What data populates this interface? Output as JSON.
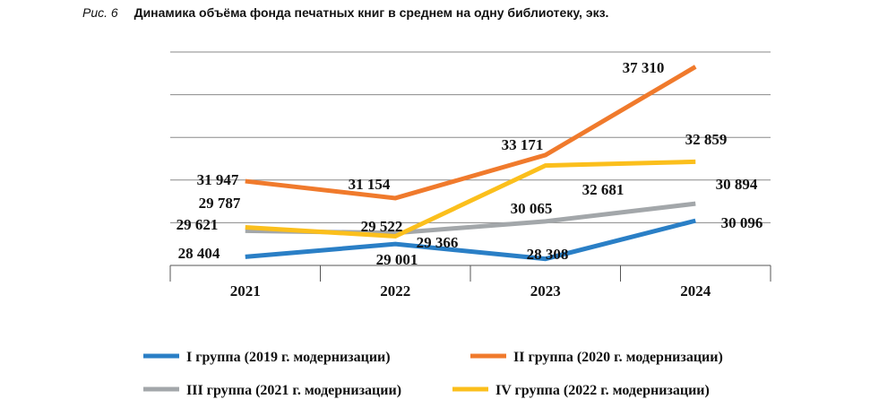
{
  "caption": {
    "figure_number": "Рис. 6",
    "title": "Динамика объёма фонда печатных книг в среднем на одну библиотеку, экз."
  },
  "chart_data": {
    "type": "line",
    "title": "Динамика объёма фонда печатных книг в среднем на одну библиотеку, экз.",
    "categories": [
      "2021",
      "2022",
      "2023",
      "2024"
    ],
    "ylim": [
      28000,
      38000
    ],
    "grid": true,
    "legend_position": "bottom",
    "series": [
      {
        "name": "I группа (2019 г. модернизации)",
        "color": "#2a7fc6",
        "values": [
          28404,
          29001,
          28308,
          30096
        ],
        "labels": [
          "28 404",
          "29 001",
          "28 308",
          "30 096"
        ]
      },
      {
        "name": "II группа (2020 г. модернизации)",
        "color": "#f07a2c",
        "values": [
          31947,
          31154,
          33171,
          37310
        ],
        "labels": [
          "31 947",
          "31 154",
          "33 171",
          "37 310"
        ]
      },
      {
        "name": "III группа (2021 г. модернизации)",
        "color": "#a3a7aa",
        "values": [
          29621,
          29522,
          30065,
          30894
        ],
        "labels": [
          "29 621",
          "29 522",
          "30 065",
          "30 894"
        ]
      },
      {
        "name": "IV группа (2022 г. модернизации)",
        "color": "#fbbf1c",
        "values": [
          29787,
          29366,
          32681,
          32859
        ],
        "labels": [
          "29 787",
          "29 366",
          "32 681",
          "32 859"
        ]
      }
    ]
  }
}
